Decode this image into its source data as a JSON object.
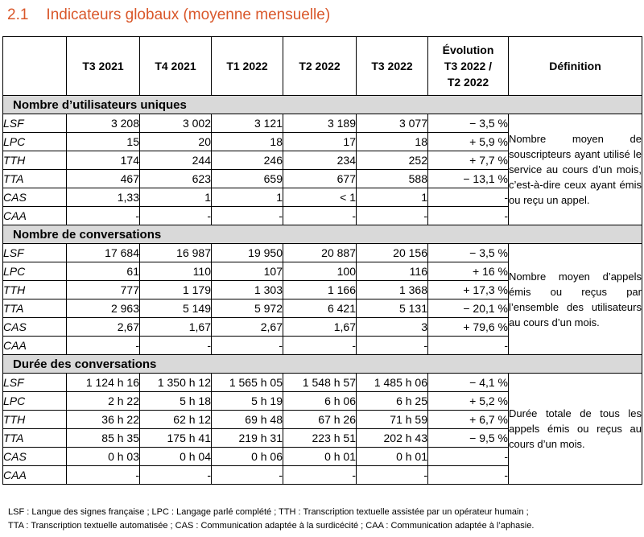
{
  "heading": {
    "number": "2.1",
    "title": "Indicateurs globaux (moyenne mensuelle)"
  },
  "columns": [
    "T3 2021",
    "T4 2021",
    "T1 2022",
    "T2 2022",
    "T3 2022"
  ],
  "evolution_header": [
    "Évolution",
    "T3 2022 /",
    "T2 2022"
  ],
  "definition_header": "Définition",
  "sections": [
    {
      "title": "Nombre d’utilisateurs uniques",
      "definition": "Nombre moyen de souscripteurs ayant utilisé le service au cours d’un mois, c’est-à-dire ceux ayant émis ou reçu un appel.",
      "rows": [
        {
          "label": "LSF",
          "values": [
            "3 208",
            "3 002",
            "3 121",
            "3 189",
            "3 077"
          ],
          "evolution": "− 3,5 %"
        },
        {
          "label": "LPC",
          "values": [
            "15",
            "20",
            "18",
            "17",
            "18"
          ],
          "evolution": "+ 5,9 %"
        },
        {
          "label": "TTH",
          "values": [
            "174",
            "244",
            "246",
            "234",
            "252"
          ],
          "evolution": "+ 7,7 %"
        },
        {
          "label": "TTA",
          "values": [
            "467",
            "623",
            "659",
            "677",
            "588"
          ],
          "evolution": "− 13,1 %"
        },
        {
          "label": "CAS",
          "values": [
            "1,33",
            "1",
            "1",
            "< 1",
            "1"
          ],
          "evolution": "-"
        },
        {
          "label": "CAA",
          "values": [
            "-",
            "-",
            "-",
            "-",
            "-"
          ],
          "evolution": "-"
        }
      ]
    },
    {
      "title": "Nombre de conversations",
      "definition": "Nombre moyen d’appels émis ou reçus par l’ensemble des utilisateurs au cours d’un mois.",
      "rows": [
        {
          "label": "LSF",
          "values": [
            "17 684",
            "16 987",
            "19 950",
            "20 887",
            "20 156"
          ],
          "evolution": "− 3,5 %"
        },
        {
          "label": "LPC",
          "values": [
            "61",
            "110",
            "107",
            "100",
            "116"
          ],
          "evolution": "+ 16 %"
        },
        {
          "label": "TTH",
          "values": [
            "777",
            "1 179",
            "1 303",
            "1 166",
            "1 368"
          ],
          "evolution": "+ 17,3 %"
        },
        {
          "label": "TTA",
          "values": [
            "2 963",
            "5 149",
            "5 972",
            "6 421",
            "5 131"
          ],
          "evolution": "− 20,1 %"
        },
        {
          "label": "CAS",
          "values": [
            "2,67",
            "1,67",
            "2,67",
            "1,67",
            "3"
          ],
          "evolution": "+ 79,6 %"
        },
        {
          "label": "CAA",
          "values": [
            "-",
            "-",
            "-",
            "-",
            "-"
          ],
          "evolution": "-"
        }
      ]
    },
    {
      "title": "Durée des conversations",
      "definition": "Durée totale de tous les appels émis ou reçus au cours d’un mois.",
      "rows": [
        {
          "label": "LSF",
          "values": [
            "1 124 h 16",
            "1 350 h 12",
            "1 565 h 05",
            "1 548 h 57",
            "1 485 h 06"
          ],
          "evolution": "− 4,1 %"
        },
        {
          "label": "LPC",
          "values": [
            "2 h 22",
            "5 h 18",
            "5 h 19",
            "6 h 06",
            "6 h 25"
          ],
          "evolution": "+ 5,2 %"
        },
        {
          "label": "TTH",
          "values": [
            "36 h 22",
            "62 h 12",
            "69 h 48",
            "67 h 26",
            "71 h 59"
          ],
          "evolution": "+ 6,7 %"
        },
        {
          "label": "TTA",
          "values": [
            "85 h 35",
            "175 h 41",
            "219 h 31",
            "223 h 51",
            "202 h 43"
          ],
          "evolution": "− 9,5 %"
        },
        {
          "label": "CAS",
          "values": [
            "0 h 03",
            "0 h 04",
            "0 h 06",
            "0 h 01",
            "0 h 01"
          ],
          "evolution": "-"
        },
        {
          "label": "CAA",
          "values": [
            "-",
            "-",
            "-",
            "-",
            "-"
          ],
          "evolution": "-"
        }
      ]
    }
  ],
  "footnote": [
    "LSF : Langue des signes française ; LPC : Langage parlé complété ; TTH : Transcription textuelle assistée par un opérateur humain ;",
    "TTA : Transcription textuelle automatisée ; CAS : Communication adaptée à la surdicécité ; CAA : Communication adaptée à l’aphasie."
  ]
}
